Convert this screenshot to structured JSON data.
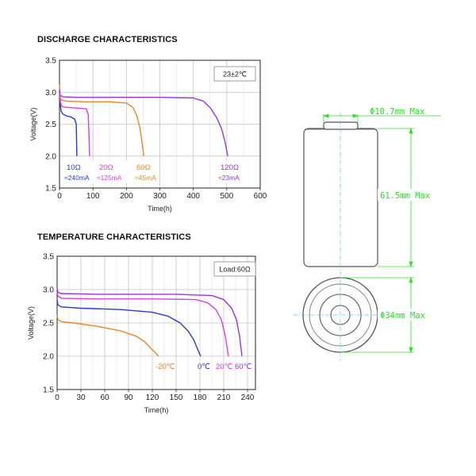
{
  "colors": {
    "blue": "#2a3ad8",
    "magenta": "#e23ae0",
    "orange": "#e8862a",
    "purple": "#9a32e6",
    "dimension": "#2ee02e",
    "grid": "#c4c4c4",
    "frame": "#222222"
  },
  "chart_data": [
    {
      "type": "line",
      "title": "DISCHARGE CHARACTERISTICS",
      "xlabel": "Time(h)",
      "ylabel": "Voltage(V)",
      "xlim": [
        0,
        600
      ],
      "ylim": [
        1.5,
        3.5
      ],
      "xticks": [
        "0",
        "100",
        "200",
        "300",
        "400",
        "500",
        "600"
      ],
      "yticks": [
        "1.5",
        "2.0",
        "2.5",
        "3.0",
        "3.5"
      ],
      "grid": true,
      "condition_label": "23±2℃",
      "series": [
        {
          "name": "10Ω",
          "sub": "≈240mA",
          "color": "blue",
          "x": [
            0,
            2,
            5,
            10,
            20,
            35,
            45,
            50,
            52
          ],
          "y": [
            3.02,
            2.82,
            2.7,
            2.66,
            2.63,
            2.61,
            2.58,
            2.5,
            2.0
          ]
        },
        {
          "name": "20Ω",
          "sub": "≈125mA",
          "color": "magenta",
          "x": [
            0,
            2,
            5,
            10,
            30,
            60,
            80,
            86,
            88,
            90
          ],
          "y": [
            3.08,
            2.88,
            2.8,
            2.77,
            2.76,
            2.75,
            2.74,
            2.65,
            2.35,
            2.0
          ]
        },
        {
          "name": "60Ω",
          "sub": "≈45mA",
          "color": "orange",
          "x": [
            0,
            2,
            5,
            20,
            80,
            150,
            200,
            220,
            232,
            240,
            247,
            252
          ],
          "y": [
            3.12,
            2.95,
            2.88,
            2.86,
            2.85,
            2.85,
            2.83,
            2.76,
            2.62,
            2.45,
            2.2,
            2.0
          ]
        },
        {
          "name": "120Ω",
          "sub": "≈23mA",
          "color": "purple",
          "x": [
            0,
            2,
            10,
            50,
            150,
            300,
            400,
            430,
            450,
            470,
            485,
            495,
            503
          ],
          "y": [
            3.04,
            2.95,
            2.93,
            2.92,
            2.92,
            2.92,
            2.91,
            2.86,
            2.76,
            2.6,
            2.42,
            2.22,
            2.0
          ]
        }
      ]
    },
    {
      "type": "line",
      "title": "TEMPERATURE CHARACTERISTICS",
      "xlabel": "Time(h)",
      "ylabel": "Voltage(V)",
      "xlim": [
        0,
        250
      ],
      "ylim": [
        1.5,
        3.5
      ],
      "xticks": [
        "0",
        "30",
        "60",
        "90",
        "120",
        "150",
        "180",
        "210",
        "240"
      ],
      "yticks": [
        "1.5",
        "2.0",
        "2.5",
        "3.0",
        "3.5"
      ],
      "grid": true,
      "condition_label": "Load:60Ω",
      "series": [
        {
          "name": "-20℃",
          "color": "orange",
          "x": [
            0,
            1,
            5,
            20,
            50,
            80,
            100,
            110,
            118,
            124,
            128
          ],
          "y": [
            2.62,
            2.55,
            2.52,
            2.5,
            2.45,
            2.38,
            2.3,
            2.22,
            2.12,
            2.05,
            2.0
          ]
        },
        {
          "name": "0℃",
          "color": "blue",
          "x": [
            0,
            1,
            5,
            30,
            80,
            120,
            140,
            155,
            165,
            172,
            178,
            181
          ],
          "y": [
            2.85,
            2.77,
            2.74,
            2.72,
            2.7,
            2.66,
            2.6,
            2.5,
            2.38,
            2.25,
            2.08,
            2.0
          ]
        },
        {
          "name": "20℃",
          "color": "magenta",
          "x": [
            0,
            1,
            5,
            50,
            120,
            175,
            190,
            200,
            207,
            212,
            216
          ],
          "y": [
            2.98,
            2.9,
            2.87,
            2.86,
            2.86,
            2.85,
            2.8,
            2.7,
            2.55,
            2.3,
            2.0
          ]
        },
        {
          "name": "60℃",
          "color": "purple",
          "x": [
            0,
            1,
            5,
            50,
            150,
            195,
            210,
            220,
            226,
            230,
            233
          ],
          "y": [
            3.02,
            2.96,
            2.94,
            2.93,
            2.93,
            2.91,
            2.85,
            2.72,
            2.55,
            2.3,
            2.0
          ]
        }
      ]
    }
  ],
  "dimensions": {
    "top_diameter": "Φ10.7mm Max",
    "height": "61.5mm Max",
    "diameter": "Φ34mm Max"
  }
}
